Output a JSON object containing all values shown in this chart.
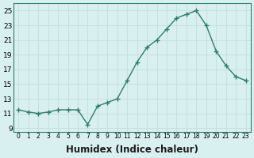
{
  "x": [
    0,
    1,
    2,
    3,
    4,
    5,
    6,
    7,
    8,
    9,
    10,
    11,
    12,
    13,
    14,
    15,
    16,
    17,
    18,
    19,
    20,
    21,
    22,
    23
  ],
  "y": [
    11.5,
    11.2,
    11.0,
    11.2,
    11.5,
    11.5,
    11.5,
    9.5,
    12.0,
    12.5,
    13.0,
    15.5,
    18.0,
    20.0,
    21.0,
    22.5,
    24.0,
    24.5,
    25.0,
    23.0,
    19.5,
    17.5,
    16.0,
    15.5
  ],
  "xlabel": "Humidex (Indice chaleur)",
  "xticks": [
    0,
    1,
    2,
    3,
    4,
    5,
    6,
    7,
    8,
    9,
    10,
    11,
    12,
    13,
    14,
    15,
    16,
    17,
    18,
    19,
    20,
    21,
    22,
    23
  ],
  "yticks": [
    9,
    11,
    13,
    15,
    17,
    19,
    21,
    23,
    25
  ],
  "xlim": [
    -0.5,
    23.5
  ],
  "ylim": [
    8.5,
    26.0
  ],
  "line_color": "#2e7d6e",
  "marker": "+",
  "bg_color": "#d9f0f0",
  "grid_color": "#c8e0e0",
  "label_fontsize": 8.5
}
